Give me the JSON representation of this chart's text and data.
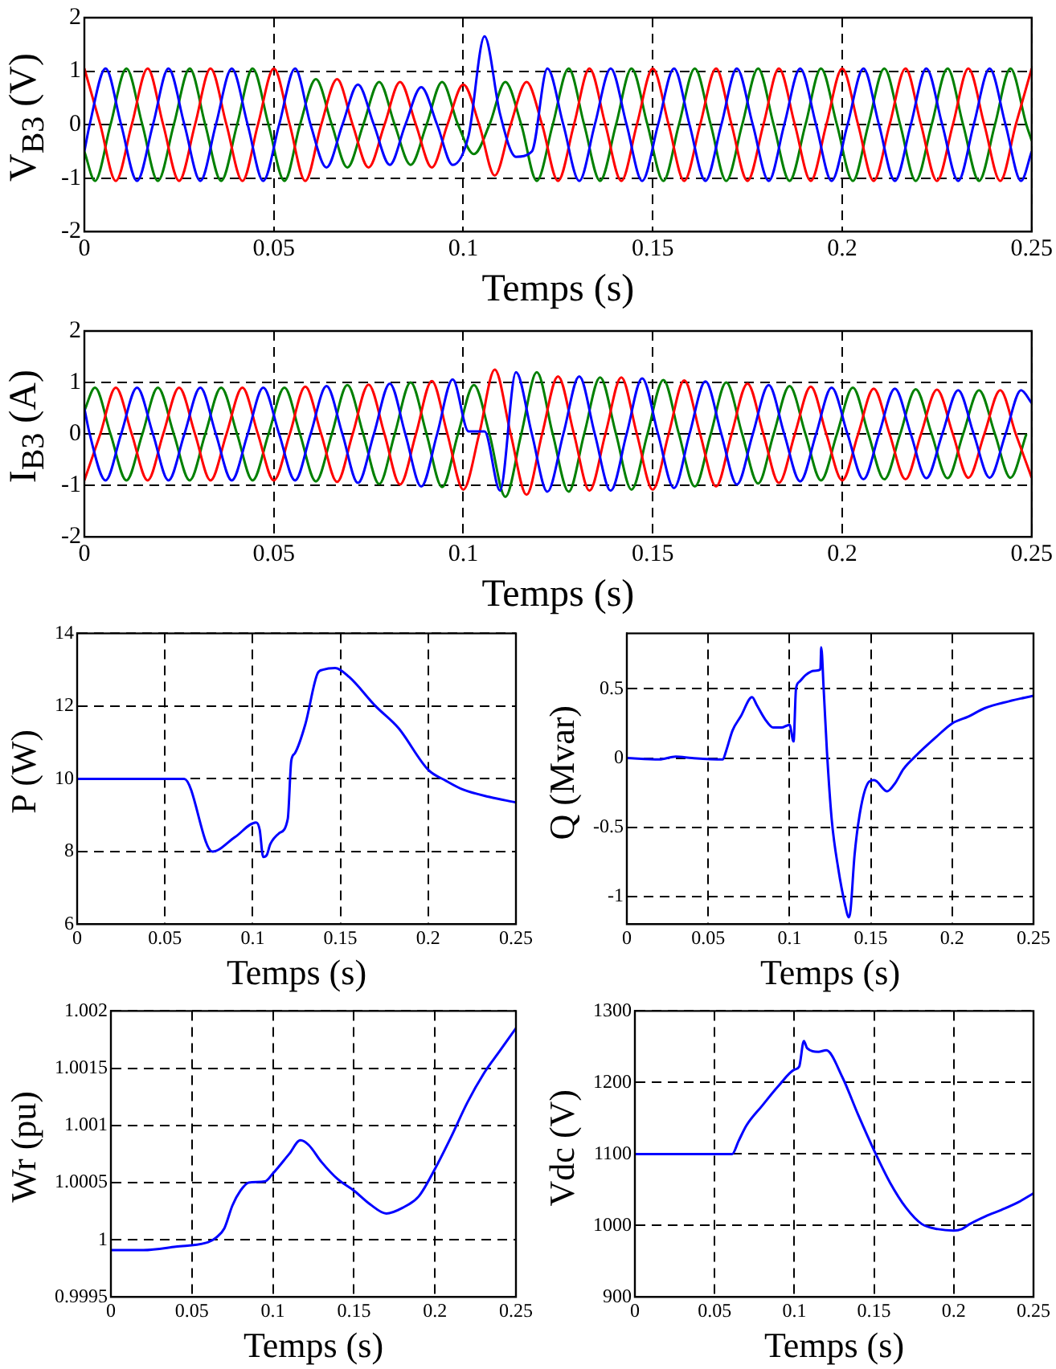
{
  "chart_data": [
    {
      "type": "line",
      "xlabel": "Temps (s)",
      "ylabel": "V$_{B3}$ (V)",
      "xlim": [
        0,
        0.25
      ],
      "xticks": [
        0,
        0.05,
        0.1,
        0.15,
        0.2,
        0.25
      ],
      "ylim": [
        -2,
        2
      ],
      "yticks": [
        -2,
        -1,
        0,
        1,
        2
      ],
      "grid": true,
      "marker": "none",
      "series": [
        {
          "color": "#0000ff",
          "x": [
            0,
            0.0014,
            0.0056,
            0.0097,
            0.0139,
            0.0181,
            0.0222,
            0.0264,
            0.0306,
            0.0347,
            0.0389,
            0.0431,
            0.0472,
            0.0514,
            0.0556,
            0.0597,
            0.0639,
            0.0681,
            0.0722,
            0.0764,
            0.0806,
            0.0847,
            0.0889,
            0.0931,
            0.0972,
            0.1014,
            0.1056,
            0.1097,
            0.1139,
            0.1181,
            0.1222,
            0.1264,
            0.1306,
            0.1347,
            0.1389,
            0.1431,
            0.1472,
            0.1514,
            0.1556,
            0.1597,
            0.1639,
            0.1681,
            0.1722,
            0.1764,
            0.1806,
            0.1847,
            0.1889,
            0.1931,
            0.1972,
            0.2014,
            0.2056,
            0.2097,
            0.2139,
            0.2181,
            0.2222,
            0.2264,
            0.2306,
            0.2347,
            0.2389,
            0.2431,
            0.2472,
            0.25
          ],
          "values": [
            -0.5,
            0,
            1.05,
            0,
            -1.05,
            0,
            1.05,
            0,
            -1.05,
            0,
            1.05,
            0,
            -1.05,
            0,
            1.05,
            0,
            -0.8,
            0,
            0.75,
            0,
            -0.75,
            0,
            0.7,
            0,
            -0.75,
            -0.2,
            1.65,
            0.2,
            -0.6,
            -0.5,
            1.05,
            0,
            -1.05,
            0,
            1.05,
            0,
            -1.05,
            0,
            1.05,
            0,
            -1.05,
            0,
            1.05,
            0,
            -1.05,
            0,
            1.05,
            0,
            -1.05,
            0,
            1.05,
            0,
            -1.05,
            0,
            1.05,
            0,
            -1.05,
            0,
            1.05,
            0,
            -1.05,
            -0.5
          ]
        },
        {
          "color": "#ff0000",
          "x": [
            0,
            0.0042,
            0.0083,
            0.0125,
            0.0167,
            0.0208,
            0.025,
            0.0292,
            0.0333,
            0.0375,
            0.0417,
            0.0458,
            0.05,
            0.0542,
            0.0583,
            0.0625,
            0.0667,
            0.0708,
            0.075,
            0.0792,
            0.0833,
            0.0875,
            0.0917,
            0.0958,
            0.1,
            0.1042,
            0.1083,
            0.1125,
            0.1167,
            0.1208,
            0.125,
            0.1292,
            0.1333,
            0.1375,
            0.1417,
            0.1458,
            0.15,
            0.1542,
            0.1583,
            0.1625,
            0.1667,
            0.1708,
            0.175,
            0.1792,
            0.1833,
            0.1875,
            0.1917,
            0.1958,
            0.2,
            0.2042,
            0.2083,
            0.2125,
            0.2167,
            0.2208,
            0.225,
            0.2292,
            0.2333,
            0.2375,
            0.2417,
            0.2458,
            0.25
          ],
          "values": [
            1.05,
            0,
            -1.05,
            0,
            1.05,
            0,
            -1.05,
            0,
            1.05,
            0,
            -1.05,
            0,
            1.05,
            0,
            -1.05,
            0,
            0.85,
            0,
            -0.8,
            0,
            0.8,
            0,
            -0.8,
            0,
            0.75,
            0,
            -0.95,
            0,
            0.8,
            0,
            -1.05,
            0,
            1.05,
            0,
            -1.05,
            0,
            1.05,
            0,
            -1.05,
            0,
            1.05,
            0,
            -1.05,
            0,
            1.05,
            0,
            -1.05,
            0,
            1.05,
            0,
            -1.05,
            0,
            1.05,
            0,
            -1.05,
            0,
            1.05,
            0,
            -1.05,
            0,
            1.05
          ]
        },
        {
          "color": "#008000",
          "x": [
            0,
            0.0028,
            0.0069,
            0.0111,
            0.0153,
            0.0194,
            0.0236,
            0.0278,
            0.0319,
            0.0361,
            0.0403,
            0.0444,
            0.0486,
            0.0528,
            0.0569,
            0.0611,
            0.0653,
            0.0694,
            0.0736,
            0.0778,
            0.0819,
            0.0861,
            0.0903,
            0.0944,
            0.0986,
            0.1028,
            0.1069,
            0.1111,
            0.1153,
            0.1194,
            0.1236,
            0.1278,
            0.1319,
            0.1361,
            0.1403,
            0.1444,
            0.1486,
            0.1528,
            0.1569,
            0.1611,
            0.1653,
            0.1694,
            0.1736,
            0.1778,
            0.1819,
            0.1861,
            0.1903,
            0.1944,
            0.1986,
            0.2028,
            0.2069,
            0.2111,
            0.2153,
            0.2194,
            0.2236,
            0.2278,
            0.2319,
            0.2361,
            0.2403,
            0.2444,
            0.2486,
            0.25
          ],
          "values": [
            -0.5,
            -1.05,
            0,
            1.05,
            0,
            -1.05,
            0,
            1.05,
            0,
            -1.05,
            0,
            1.05,
            0,
            -1.05,
            0,
            0.85,
            0,
            -0.8,
            0,
            0.8,
            0,
            -0.75,
            0,
            0.8,
            0,
            -0.55,
            0,
            0.8,
            0,
            -1.05,
            0,
            1.05,
            0,
            -1.05,
            0,
            1.05,
            0,
            -1.05,
            0,
            1.05,
            0,
            -1.05,
            0,
            1.05,
            0,
            -1.05,
            0,
            1.05,
            0,
            -1.05,
            0,
            1.05,
            0,
            -1.05,
            0,
            1.05,
            0,
            -1.05,
            0,
            1.05,
            0,
            -0.3
          ]
        }
      ]
    },
    {
      "type": "line",
      "xlabel": "Temps (s)",
      "ylabel": "I$_{B3}$ (A)",
      "xlim": [
        0,
        0.25
      ],
      "xticks": [
        0,
        0.05,
        0.1,
        0.15,
        0.2,
        0.25
      ],
      "ylim": [
        -2,
        2
      ],
      "yticks": [
        -2,
        -1,
        0,
        1,
        2
      ],
      "grid": true,
      "marker": "none",
      "series": [
        {
          "color": "#0000ff",
          "x": [
            0,
            0.0014,
            0.0056,
            0.0097,
            0.0139,
            0.0181,
            0.0222,
            0.0264,
            0.0306,
            0.0347,
            0.0389,
            0.0431,
            0.0472,
            0.0514,
            0.0556,
            0.0597,
            0.0639,
            0.0681,
            0.0722,
            0.0764,
            0.0806,
            0.0847,
            0.0889,
            0.0931,
            0.0972,
            0.1014,
            0.1056,
            0.1097,
            0.1139,
            0.1181,
            0.1222,
            0.1264,
            0.1306,
            0.1347,
            0.1389,
            0.1431,
            0.1472,
            0.1514,
            0.1556,
            0.1597,
            0.1639,
            0.1681,
            0.1722,
            0.1764,
            0.1806,
            0.1847,
            0.1889,
            0.1931,
            0.1972,
            0.2014,
            0.2056,
            0.2097,
            0.2139,
            0.2181,
            0.2222,
            0.2264,
            0.2306,
            0.2347,
            0.2389,
            0.2431,
            0.2472,
            0.25
          ],
          "values": [
            0.5,
            0,
            -0.9,
            0,
            0.9,
            0,
            -0.9,
            0,
            0.9,
            0,
            -0.9,
            0,
            0.9,
            0,
            -0.9,
            0,
            0.93,
            0,
            -0.95,
            0,
            0.98,
            0,
            -1.02,
            0,
            1.06,
            0.05,
            0.05,
            -1.1,
            1.2,
            0,
            -1.12,
            0,
            1.12,
            0,
            -1.1,
            0,
            1.08,
            0,
            -1.05,
            0,
            1.02,
            0,
            -0.98,
            0,
            0.95,
            0,
            -0.92,
            0,
            0.9,
            0,
            -0.88,
            0,
            0.88,
            0,
            -0.86,
            0,
            0.85,
            0,
            -0.85,
            0,
            0.85,
            0.6
          ]
        },
        {
          "color": "#ff0000",
          "x": [
            0,
            0.0042,
            0.0083,
            0.0125,
            0.0167,
            0.0208,
            0.025,
            0.0292,
            0.0333,
            0.0375,
            0.0417,
            0.0458,
            0.05,
            0.0542,
            0.0583,
            0.0625,
            0.0667,
            0.0708,
            0.075,
            0.0792,
            0.0833,
            0.0875,
            0.0917,
            0.0958,
            0.1,
            0.1042,
            0.1083,
            0.1125,
            0.1167,
            0.1208,
            0.125,
            0.1292,
            0.1333,
            0.1375,
            0.1417,
            0.1458,
            0.15,
            0.1542,
            0.1583,
            0.1625,
            0.1667,
            0.1708,
            0.175,
            0.1792,
            0.1833,
            0.1875,
            0.1917,
            0.1958,
            0.2,
            0.2042,
            0.2083,
            0.2125,
            0.2167,
            0.2208,
            0.225,
            0.2292,
            0.2333,
            0.2375,
            0.2417,
            0.2458,
            0.25
          ],
          "values": [
            -0.9,
            0,
            0.9,
            0,
            -0.9,
            0,
            0.9,
            0,
            -0.9,
            0,
            0.9,
            0,
            -0.9,
            0,
            0.92,
            0,
            -0.93,
            0,
            0.96,
            0,
            -0.98,
            0,
            1.03,
            0,
            -1.08,
            0,
            1.25,
            0,
            -1.18,
            0,
            1.12,
            0,
            -1.1,
            0,
            1.1,
            0,
            -1.08,
            0,
            1.04,
            0,
            -1.02,
            0,
            0.98,
            0,
            -0.95,
            0,
            0.92,
            0,
            -0.9,
            0,
            0.88,
            0,
            -0.88,
            0,
            0.86,
            0,
            -0.85,
            0,
            0.85,
            0,
            -0.85
          ]
        },
        {
          "color": "#008000",
          "x": [
            0,
            0.0028,
            0.0069,
            0.0111,
            0.0153,
            0.0194,
            0.0236,
            0.0278,
            0.0319,
            0.0361,
            0.0403,
            0.0444,
            0.0486,
            0.0528,
            0.0569,
            0.0611,
            0.0653,
            0.0694,
            0.0736,
            0.0778,
            0.0819,
            0.0861,
            0.0903,
            0.0944,
            0.0986,
            0.1028,
            0.1069,
            0.1111,
            0.1153,
            0.1194,
            0.1236,
            0.1278,
            0.1319,
            0.1361,
            0.1403,
            0.1444,
            0.1486,
            0.1528,
            0.1569,
            0.1611,
            0.1653,
            0.1694,
            0.1736,
            0.1778,
            0.1819,
            0.1861,
            0.1903,
            0.1944,
            0.1986,
            0.2028,
            0.2069,
            0.2111,
            0.2153,
            0.2194,
            0.2236,
            0.2278,
            0.2319,
            0.2361,
            0.2403,
            0.2444,
            0.2486
          ],
          "values": [
            0.45,
            0.9,
            0,
            -0.9,
            0,
            0.9,
            0,
            -0.9,
            0,
            0.9,
            0,
            -0.9,
            0,
            0.9,
            0,
            -0.92,
            0,
            0.95,
            0,
            -0.97,
            0,
            1.0,
            0,
            -1.03,
            0,
            0.95,
            0,
            -1.22,
            0,
            1.2,
            0,
            -1.12,
            0,
            1.1,
            0,
            -1.08,
            0,
            1.05,
            0,
            -1.02,
            0,
            1.0,
            0,
            -0.96,
            0,
            0.93,
            0,
            -0.9,
            0,
            0.9,
            0,
            -0.88,
            0,
            0.87,
            0,
            -0.86,
            0,
            0.85,
            0,
            -0.85,
            0
          ]
        }
      ]
    },
    {
      "type": "line",
      "xlabel": "Temps (s)",
      "ylabel": "P (W)",
      "xlim": [
        0,
        0.25
      ],
      "xticks": [
        0,
        0.05,
        0.1,
        0.15,
        0.2,
        0.25
      ],
      "ylim": [
        6,
        14
      ],
      "yticks": [
        6,
        8,
        10,
        12,
        14
      ],
      "grid": true,
      "marker": "none",
      "series": [
        {
          "color": "#0000ff",
          "x": [
            0,
            0.061,
            0.077,
            0.09,
            0.102,
            0.104,
            0.106,
            0.108,
            0.11,
            0.115,
            0.12,
            0.122,
            0.124,
            0.13,
            0.137,
            0.14,
            0.147,
            0.155,
            0.17,
            0.183,
            0.2,
            0.21,
            0.22,
            0.235,
            0.25
          ],
          "values": [
            10,
            10,
            8.0,
            8.4,
            8.8,
            8.6,
            7.85,
            7.9,
            8.2,
            8.5,
            8.9,
            10.5,
            10.7,
            11.5,
            12.9,
            13.0,
            13.05,
            12.8,
            12.0,
            11.4,
            10.25,
            9.95,
            9.7,
            9.5,
            9.35
          ]
        }
      ]
    },
    {
      "type": "line",
      "xlabel": "Temps (s)",
      "ylabel": "Q (Mvar)",
      "xlim": [
        0,
        0.25
      ],
      "xticks": [
        0,
        0.05,
        0.1,
        0.15,
        0.2,
        0.25
      ],
      "ylim": [
        -1.2,
        0.9
      ],
      "yticks": [
        -1,
        -0.5,
        0,
        0.5
      ],
      "grid": true,
      "marker": "none",
      "series": [
        {
          "color": "#0000ff",
          "x": [
            0,
            0.02,
            0.03,
            0.04,
            0.059,
            0.061,
            0.065,
            0.07,
            0.077,
            0.08,
            0.085,
            0.09,
            0.095,
            0.1,
            0.1025,
            0.104,
            0.106,
            0.11,
            0.115,
            0.119,
            0.1195,
            0.121,
            0.123,
            0.126,
            0.13,
            0.134,
            0.1365,
            0.1375,
            0.14,
            0.144,
            0.149,
            0.152,
            0.16,
            0.165,
            0.17,
            0.178,
            0.19,
            0.2,
            0.21,
            0.22,
            0.235,
            0.25
          ],
          "values": [
            0,
            -0.01,
            0.01,
            0,
            -0.01,
            0.05,
            0.2,
            0.3,
            0.44,
            0.38,
            0.28,
            0.22,
            0.22,
            0.24,
            0.12,
            0.5,
            0.55,
            0.6,
            0.63,
            0.64,
            0.8,
            0.5,
            0.05,
            -0.45,
            -0.8,
            -1.05,
            -1.15,
            -1.1,
            -0.7,
            -0.35,
            -0.17,
            -0.16,
            -0.24,
            -0.18,
            -0.08,
            0.02,
            0.15,
            0.25,
            0.3,
            0.36,
            0.41,
            0.45
          ]
        }
      ]
    },
    {
      "type": "line",
      "xlabel": "Temps (s)",
      "ylabel": "Wr (pu)",
      "xlim": [
        0,
        0.25
      ],
      "xticks": [
        0,
        0.05,
        0.1,
        0.15,
        0.2,
        0.25
      ],
      "ylim": [
        0.9995,
        1.002
      ],
      "yticks": [
        0.9995,
        1,
        1.0005,
        1.001,
        1.0015,
        1.002
      ],
      "grid": true,
      "marker": "none",
      "series": [
        {
          "color": "#0000ff",
          "x": [
            0,
            0.02,
            0.04,
            0.06,
            0.065,
            0.07,
            0.075,
            0.08,
            0.085,
            0.095,
            0.1,
            0.11,
            0.117,
            0.122,
            0.13,
            0.14,
            0.15,
            0.16,
            0.17,
            0.18,
            0.19,
            0.2,
            0.21,
            0.22,
            0.23,
            0.24,
            0.25
          ],
          "values": [
            0.99991,
            0.99991,
            0.99994,
            0.99998,
            1.00002,
            1.0001,
            1.0003,
            1.00043,
            1.0005,
            1.00051,
            1.00058,
            1.00075,
            1.00087,
            1.00083,
            1.00068,
            1.00053,
            1.00043,
            1.00031,
            1.00023,
            1.00028,
            1.00038,
            1.00062,
            1.0009,
            1.0012,
            1.00145,
            1.00165,
            1.00185
          ]
        }
      ]
    },
    {
      "type": "line",
      "xlabel": "Temps (s)",
      "ylabel": "Vdc (V)",
      "xlim": [
        0,
        0.25
      ],
      "xticks": [
        0,
        0.05,
        0.1,
        0.15,
        0.2,
        0.25
      ],
      "ylim": [
        900,
        1300
      ],
      "yticks": [
        900,
        1000,
        1100,
        1200,
        1300
      ],
      "grid": true,
      "marker": "none",
      "series": [
        {
          "color": "#0000ff",
          "x": [
            0,
            0.061,
            0.065,
            0.07,
            0.08,
            0.09,
            0.1,
            0.103,
            0.106,
            0.108,
            0.115,
            0.12,
            0.13,
            0.14,
            0.15,
            0.16,
            0.17,
            0.18,
            0.19,
            0.2,
            0.205,
            0.21,
            0.22,
            0.23,
            0.24,
            0.25
          ],
          "values": [
            1100,
            1100,
            1118,
            1140,
            1168,
            1195,
            1218,
            1222,
            1258,
            1248,
            1243,
            1245,
            1208,
            1155,
            1105,
            1060,
            1025,
            1002,
            995,
            993,
            995,
            1002,
            1013,
            1022,
            1032,
            1045
          ]
        }
      ]
    }
  ]
}
